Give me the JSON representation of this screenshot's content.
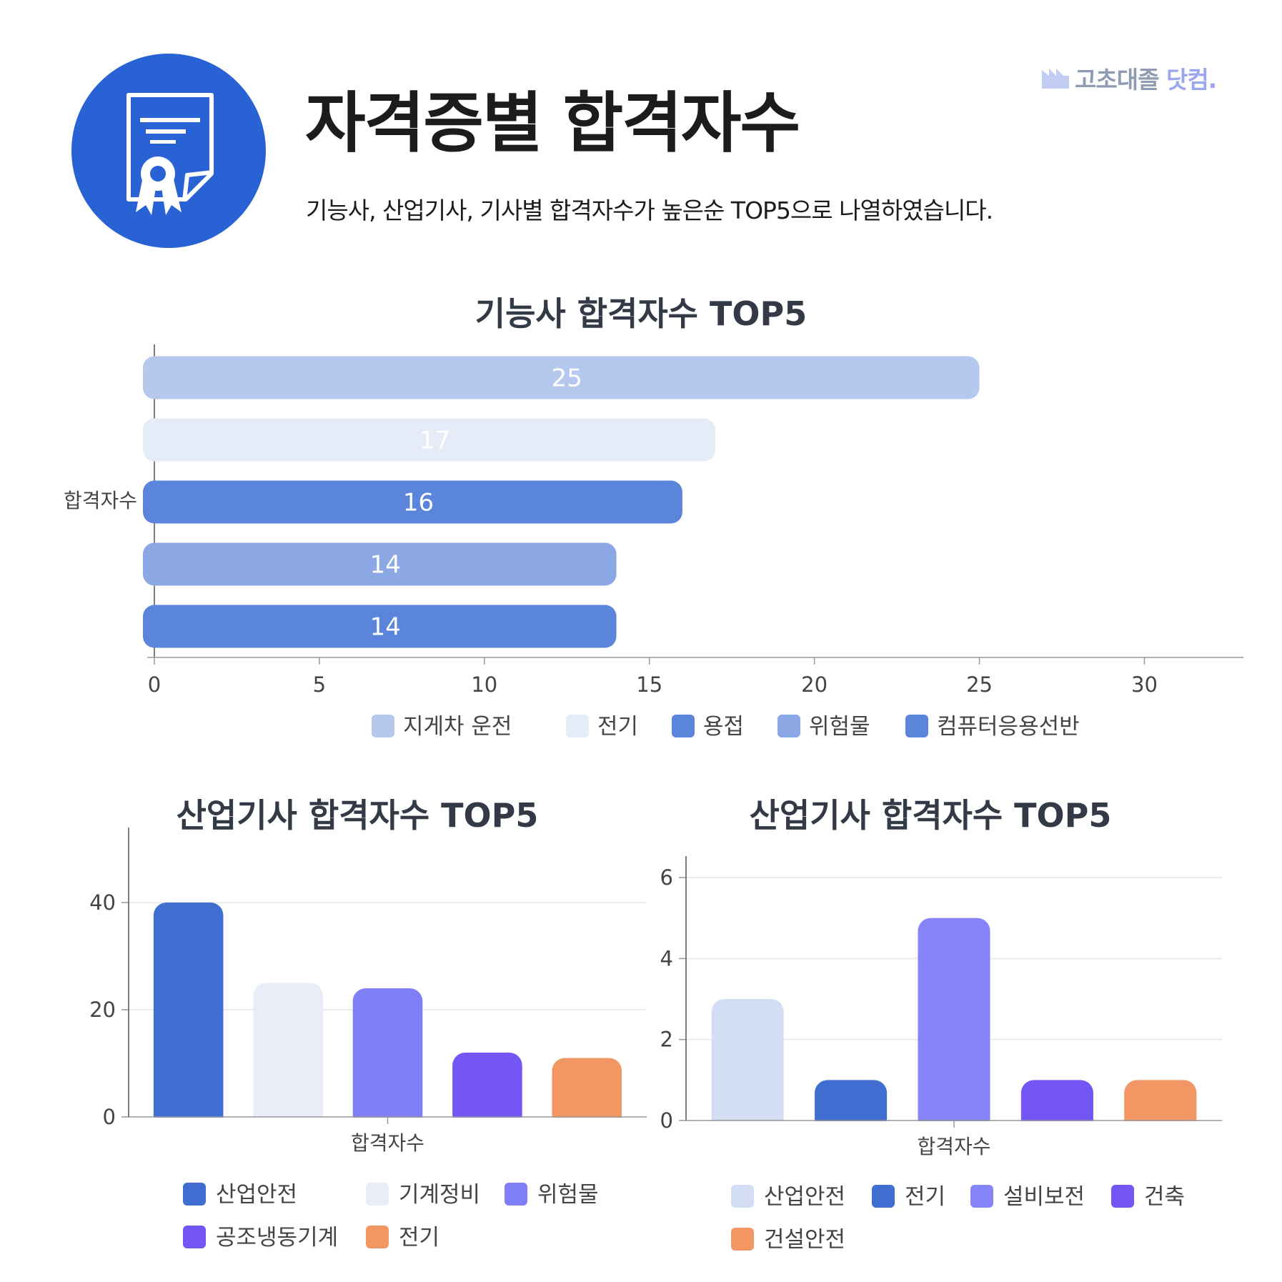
{
  "header": {
    "title": "자격증별 합격자수",
    "subtitle": "기능사, 산업기사, 기사별 합격자수가 높은순 TOP5으로 나열하였습니다.",
    "icon": "certificate-icon",
    "icon_bg_color": "#2962d4"
  },
  "brand": {
    "name": "고초대졸",
    "suffix": "닷컴."
  },
  "chart_data": [
    {
      "type": "bar",
      "orientation": "horizontal",
      "title": "기능사 합격자수 TOP5",
      "categories": [
        "합격자수"
      ],
      "series": [
        {
          "name": "지게차 운전",
          "values": [
            25
          ],
          "color": "#b7c8ee"
        },
        {
          "name": "전기",
          "values": [
            17
          ],
          "color": "#e6ebf8"
        },
        {
          "name": "용접",
          "values": [
            16
          ],
          "color": "#5b84db"
        },
        {
          "name": "위험물",
          "values": [
            14
          ],
          "color": "#8ba7e4"
        },
        {
          "name": "컴퓨터응용선반",
          "values": [
            14
          ],
          "color": "#5b84db"
        }
      ],
      "xticks": [
        "0",
        "5",
        "10",
        "15",
        "20",
        "25",
        "30"
      ],
      "xlim": [
        0,
        33
      ],
      "data_labels": true,
      "legend": "bottom"
    },
    {
      "type": "bar",
      "title": "산업기사 합격자수 TOP5",
      "categories": [
        "합격자수"
      ],
      "series": [
        {
          "name": "산업안전",
          "values": [
            40
          ],
          "color": "#3f6ed0"
        },
        {
          "name": "기계정비",
          "values": [
            25
          ],
          "color": "#e8edf8"
        },
        {
          "name": "위험물",
          "values": [
            24
          ],
          "color": "#7f80f7"
        },
        {
          "name": "공조냉동기계",
          "values": [
            12
          ],
          "color": "#7356f4"
        },
        {
          "name": "전기",
          "values": [
            11
          ],
          "color": "#f29663"
        }
      ],
      "yticks": [
        "0",
        "20",
        "40"
      ],
      "ylim": [
        0,
        50
      ],
      "legend": "bottom"
    },
    {
      "type": "bar",
      "title": "산업기사 합격자수 TOP5",
      "categories": [
        "합격자수"
      ],
      "series": [
        {
          "name": "산업안전",
          "values": [
            3
          ],
          "color": "#d3def4"
        },
        {
          "name": "전기",
          "values": [
            1
          ],
          "color": "#3f6ed0"
        },
        {
          "name": "설비보전",
          "values": [
            5
          ],
          "color": "#8585f9"
        },
        {
          "name": "건축",
          "values": [
            1
          ],
          "color": "#7356f4"
        },
        {
          "name": "건설안전",
          "values": [
            1
          ],
          "color": "#f29663"
        }
      ],
      "yticks": [
        "0",
        "2",
        "4",
        "6"
      ],
      "ylim": [
        0,
        6
      ],
      "legend": "bottom"
    }
  ]
}
